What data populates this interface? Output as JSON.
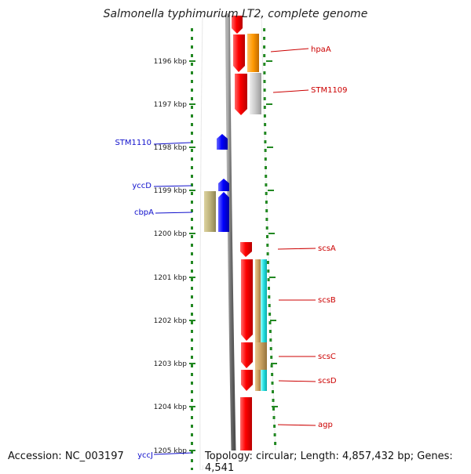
{
  "title": "Salmonella typhimurium LT2, complete genome",
  "footer": {
    "accession": "Accession: NC_003197",
    "topology": "Topology: circular; Length: 4,857,432 bp; Genes: 4,541"
  },
  "axis": {
    "ticks": [
      "1196 kbp",
      "1197 kbp",
      "1198 kbp",
      "1199 kbp",
      "1200 kbp",
      "1201 kbp",
      "1202 kbp",
      "1203 kbp",
      "1204 kbp",
      "1205 kbp"
    ]
  },
  "genes": {
    "hpaA": "hpaA",
    "STM1109": "STM1109",
    "STM1110": "STM1110",
    "yccD": "yccD",
    "cbpA": "cbpA",
    "scsA": "scsA",
    "scsB": "scsB",
    "scsC": "scsC",
    "scsD": "scsD",
    "agp": "agp",
    "yccJ": "yccJ"
  },
  "colors": {
    "forward_strand": "#ff0000",
    "reverse_strand": "#0000ff",
    "left_label": "#1010cc",
    "right_label": "#cc0000",
    "tick": "#228822",
    "backbone": "#7a7a7a",
    "orange": "#ff9900",
    "gray": "#c8c8c8",
    "khaki": "#bdb27a",
    "cyan": "#22e0e0",
    "tan": "#c8a060"
  }
}
